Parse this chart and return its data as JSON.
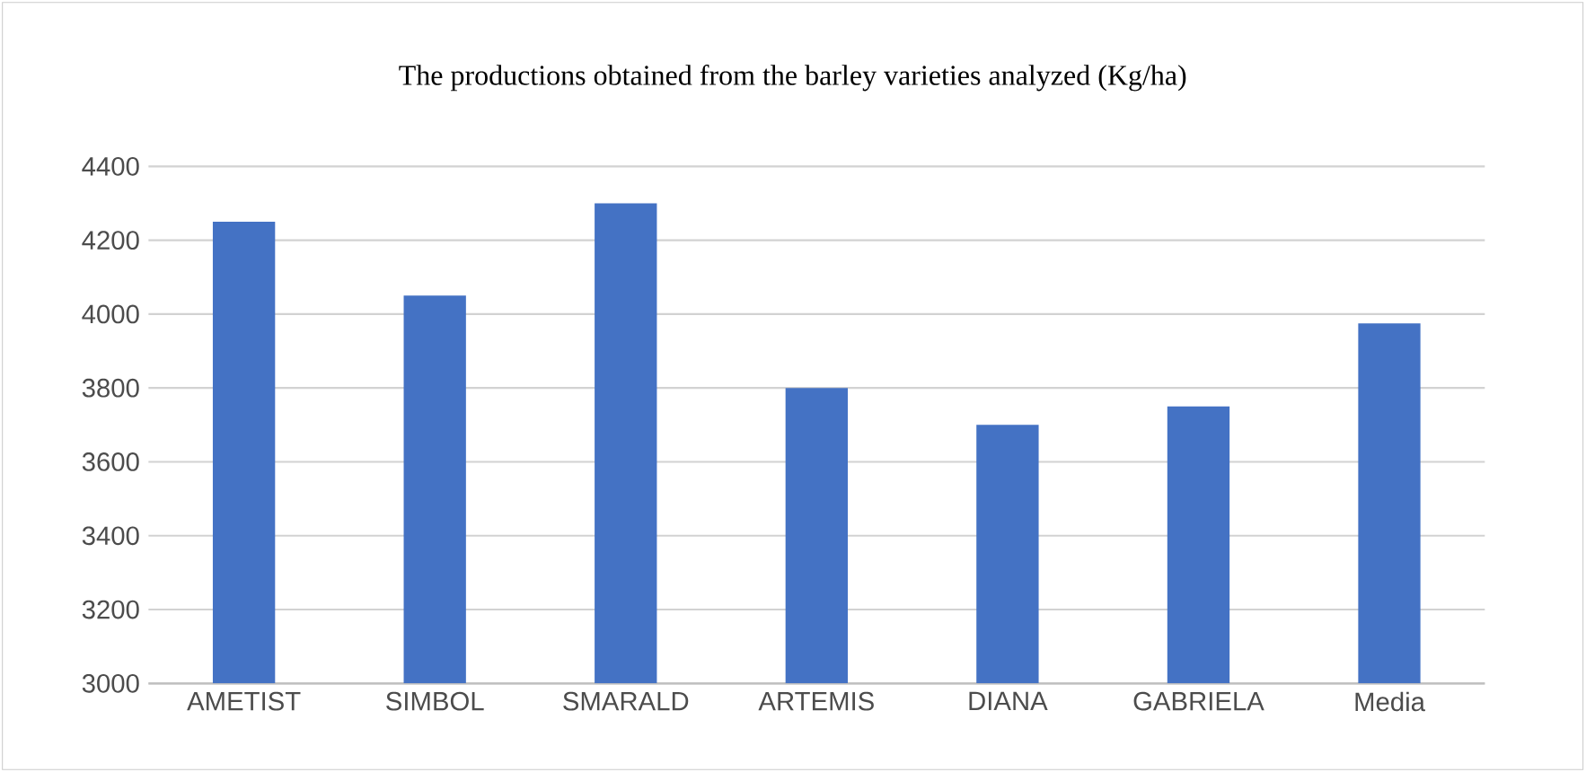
{
  "chart_data": {
    "type": "bar",
    "title": "The productions obtained from the barley varieties analyzed (Kg/ha)",
    "categories": [
      "AMETIST",
      "SIMBOL",
      "SMARALD",
      "ARTEMIS",
      "DIANA",
      "GABRIELA",
      "Media"
    ],
    "values": [
      4250,
      4050,
      4300,
      3800,
      3700,
      3750,
      3975
    ],
    "color": "#4472c4",
    "ylim": [
      3000,
      4400
    ],
    "yticks": [
      3000,
      3200,
      3400,
      3600,
      3800,
      4000,
      4200,
      4400
    ],
    "grid": "y"
  }
}
